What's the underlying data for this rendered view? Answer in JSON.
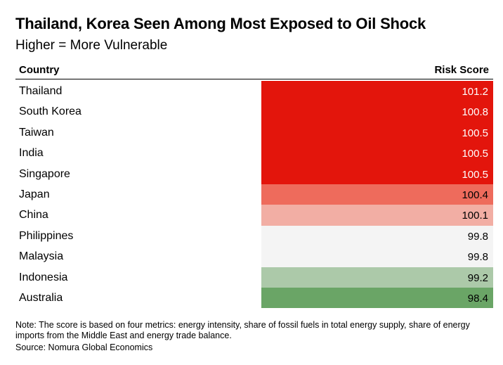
{
  "title": "Thailand, Korea Seen Among Most Exposed to Oil Shock",
  "subtitle": "Higher = More Vulnerable",
  "note": "Note: The score is based on four metrics: energy intensity, share of fossil fuels in total energy supply, share of energy imports from the Middle East and energy trade balance.",
  "source": "Source: Nomura Global Economics",
  "chart_data": {
    "type": "table",
    "title": "Thailand, Korea Seen Among Most Exposed to Oil Shock",
    "subtitle": "Higher = More Vulnerable",
    "columns": [
      "Country",
      "Risk Score"
    ],
    "rows": [
      {
        "country": "Thailand",
        "score": "101.2",
        "color": "#e3150c",
        "text_color": "#ffffff"
      },
      {
        "country": "South Korea",
        "score": "100.8",
        "color": "#e3150c",
        "text_color": "#ffffff"
      },
      {
        "country": "Taiwan",
        "score": "100.5",
        "color": "#e3150c",
        "text_color": "#ffffff"
      },
      {
        "country": "India",
        "score": "100.5",
        "color": "#e3150c",
        "text_color": "#ffffff"
      },
      {
        "country": "Singapore",
        "score": "100.5",
        "color": "#e3150c",
        "text_color": "#ffffff"
      },
      {
        "country": "Japan",
        "score": "100.4",
        "color": "#ee6b5c",
        "text_color": "#000000"
      },
      {
        "country": "China",
        "score": "100.1",
        "color": "#f2aea4",
        "text_color": "#000000"
      },
      {
        "country": "Philippines",
        "score": "99.8",
        "color": "#f4f4f4",
        "text_color": "#000000"
      },
      {
        "country": "Malaysia",
        "score": "99.8",
        "color": "#f4f4f4",
        "text_color": "#000000"
      },
      {
        "country": "Indonesia",
        "score": "99.2",
        "color": "#acc9a9",
        "text_color": "#000000"
      },
      {
        "country": "Australia",
        "score": "98.4",
        "color": "#6aa566",
        "text_color": "#000000"
      }
    ]
  }
}
